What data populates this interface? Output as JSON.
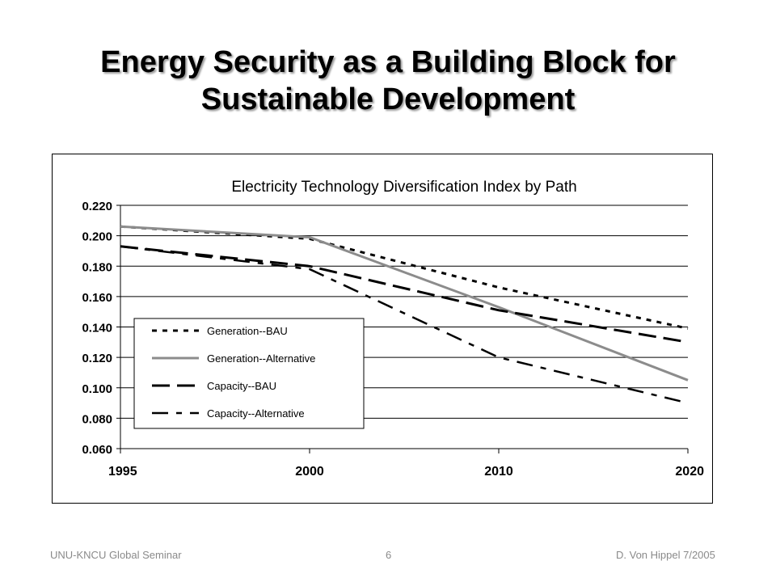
{
  "slide": {
    "title_line1": "Energy Security as a Building Block for",
    "title_line2": "Sustainable Development"
  },
  "footer": {
    "left": "UNU-KNCU Global Seminar",
    "page_number": "6",
    "right": "D. Von Hippel 7/2005"
  },
  "chart_data": {
    "type": "line",
    "title": "Electricity Technology Diversification Index by Path",
    "xlabel": "",
    "ylabel": "",
    "categories": [
      "1995",
      "2000",
      "2010",
      "2020"
    ],
    "ylim": [
      0.06,
      0.22
    ],
    "ytick_labels": [
      "0.060",
      "0.080",
      "0.100",
      "0.120",
      "0.140",
      "0.160",
      "0.180",
      "0.200",
      "0.220"
    ],
    "grid": "horizontal",
    "legend_position": "bottom-left",
    "series": [
      {
        "name": "Generation--BAU",
        "values": [
          0.206,
          0.198,
          0.166,
          0.139
        ],
        "style": "dotted",
        "color": "#000000"
      },
      {
        "name": "Generation--Alternative",
        "values": [
          0.206,
          0.199,
          0.153,
          0.105
        ],
        "style": "solid",
        "color": "#8c8c8c"
      },
      {
        "name": "Capacity--BAU",
        "values": [
          0.193,
          0.18,
          0.151,
          0.13
        ],
        "style": "long-dash",
        "color": "#000000"
      },
      {
        "name": "Capacity--Alternative",
        "values": [
          0.193,
          0.178,
          0.12,
          0.09
        ],
        "style": "dash-dot",
        "color": "#000000"
      }
    ]
  }
}
